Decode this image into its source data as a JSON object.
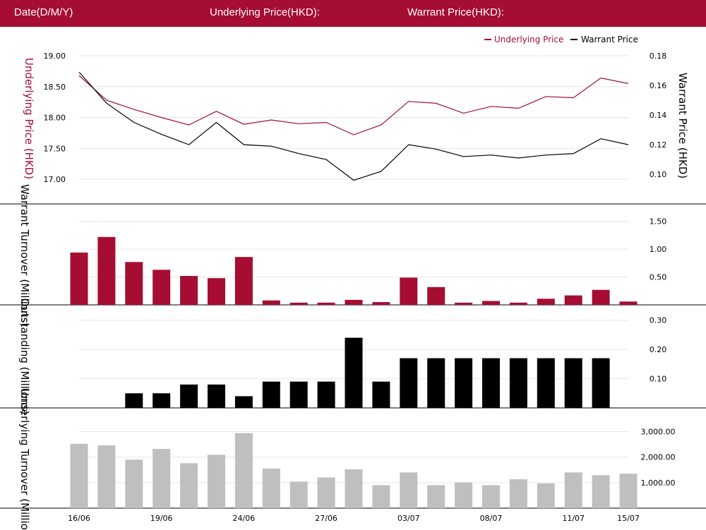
{
  "header": {
    "date_label": "Date(D/M/Y)",
    "underlying_label": "Underlying Price(HKD):",
    "warrant_label": "Warrant Price(HKD):"
  },
  "colors": {
    "brand": "#a50d32",
    "warrant": "#000000",
    "underlying_turnover": "#bfbfbf"
  },
  "chart_data": [
    {
      "type": "line",
      "legend": [
        "Underlying Price",
        "Warrant Price"
      ],
      "legend_position": "top-right",
      "ylabel_left": "Underlying Price (HKD)",
      "ylabel_right": "Warrant  Price (HKD)",
      "ylim_left": [
        16.6,
        19.0
      ],
      "ylim_right": [
        0.08,
        0.18
      ],
      "yticks_left": [
        "17.00",
        "17.50",
        "18.00",
        "18.50",
        "19.00"
      ],
      "yticks_right": [
        "0.10",
        "0.12",
        "0.14",
        "0.16",
        "0.18"
      ],
      "grid": true,
      "series": [
        {
          "name": "Underlying Price",
          "values": [
            18.68,
            18.28,
            18.13,
            18.0,
            17.88,
            18.1,
            17.89,
            17.96,
            17.9,
            17.92,
            17.72,
            17.88,
            18.26,
            18.23,
            18.07,
            18.18,
            18.15,
            18.34,
            18.32,
            18.64,
            18.55
          ]
        },
        {
          "name": "Warrant Price",
          "values": [
            0.169,
            0.148,
            0.135,
            0.127,
            0.12,
            0.135,
            0.12,
            0.119,
            0.114,
            0.11,
            0.096,
            0.102,
            0.12,
            0.117,
            0.112,
            0.113,
            0.111,
            0.113,
            0.114,
            0.124,
            0.12
          ]
        }
      ]
    },
    {
      "type": "bar",
      "ylabel": "Warrant  Turnover (Millions)",
      "ylim": [
        0,
        1.8
      ],
      "yticks": [
        "0.50",
        "1.00",
        "1.50"
      ],
      "values": [
        0.94,
        1.22,
        0.77,
        0.63,
        0.52,
        0.48,
        0.86,
        0.08,
        0.04,
        0.04,
        0.09,
        0.05,
        0.49,
        0.32,
        0.04,
        0.07,
        0.04,
        0.11,
        0.17,
        0.27,
        0.06
      ]
    },
    {
      "type": "bar",
      "ylabel": "Outstanding (Millions)",
      "ylim": [
        0,
        0.35
      ],
      "yticks": [
        "0.10",
        "0.20",
        "0.30"
      ],
      "values": [
        0,
        0,
        0.05,
        0.05,
        0.08,
        0.08,
        0.04,
        0.09,
        0.09,
        0.09,
        0.24,
        0.09,
        0.17,
        0.17,
        0.17,
        0.17,
        0.17,
        0.17,
        0.17,
        0.17,
        0
      ]
    },
    {
      "type": "bar",
      "ylabel": "Underlying Turnover (Millions)",
      "ylim": [
        0,
        3900
      ],
      "yticks": [
        "1,000.00",
        "2,000.00",
        "3,000.00"
      ],
      "values": [
        2520,
        2460,
        1900,
        2320,
        1760,
        2090,
        2940,
        1550,
        1040,
        1200,
        1520,
        900,
        1400,
        900,
        1010,
        900,
        1130,
        970,
        1400,
        1290,
        1350
      ]
    }
  ],
  "x_tick_labels": [
    {
      "index": 0,
      "label": "16/06"
    },
    {
      "index": 3,
      "label": "19/06"
    },
    {
      "index": 6,
      "label": "24/06"
    },
    {
      "index": 9,
      "label": "27/06"
    },
    {
      "index": 12,
      "label": "03/07"
    },
    {
      "index": 15,
      "label": "08/07"
    },
    {
      "index": 18,
      "label": "11/07"
    },
    {
      "index": 20,
      "label": "15/07"
    }
  ]
}
